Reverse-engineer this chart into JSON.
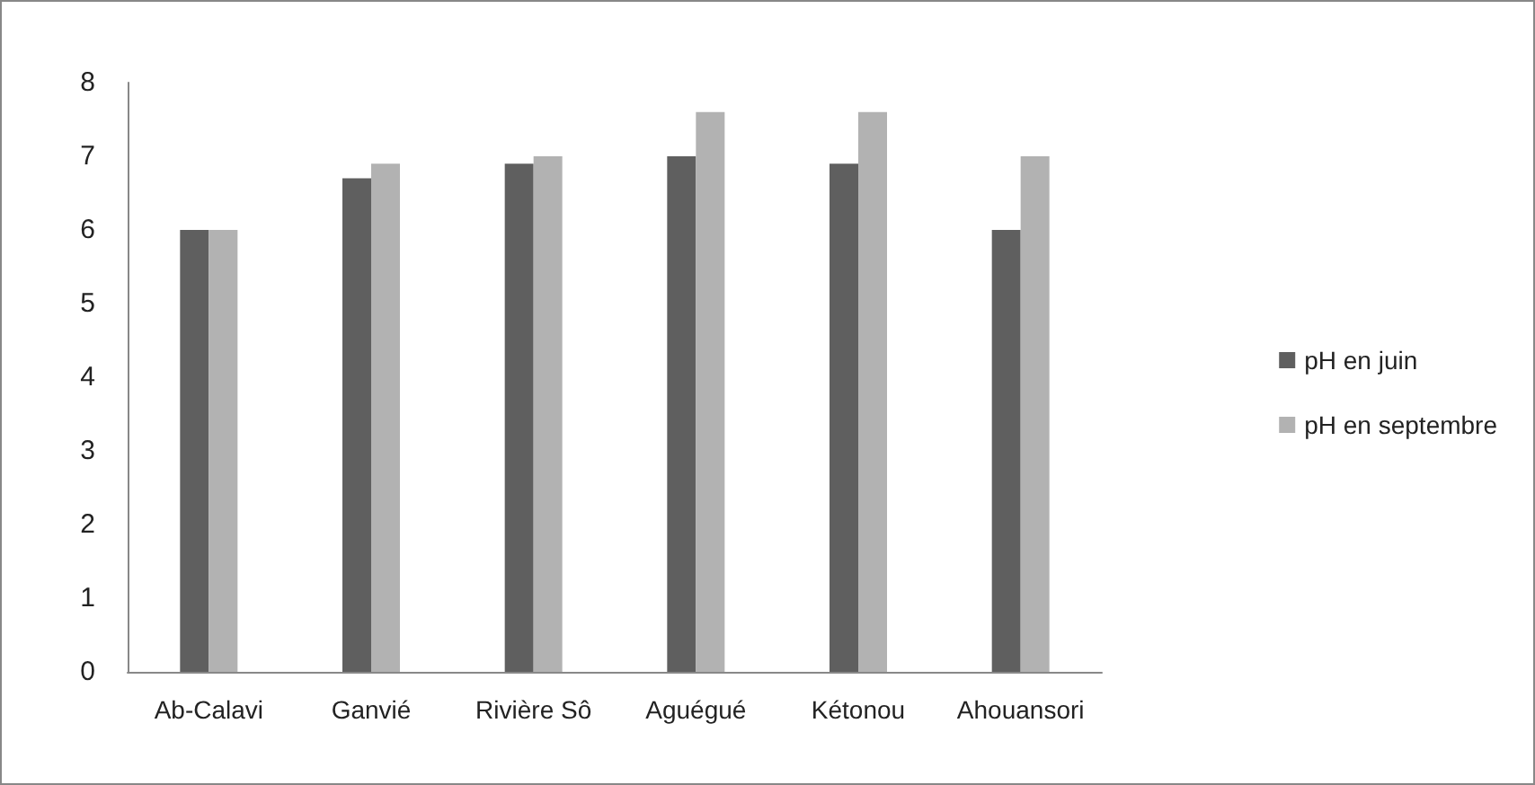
{
  "chart_data": {
    "type": "bar",
    "categories": [
      "Ab-Calavi",
      "Ganvié",
      "Rivière Sô",
      "Aguégué",
      "Kétonou",
      "Ahouansori"
    ],
    "series": [
      {
        "name": "pH en juin",
        "color": "#5f5f5f",
        "values": [
          6.0,
          6.7,
          6.9,
          7.0,
          6.9,
          6.0
        ]
      },
      {
        "name": "pH en septembre",
        "color": "#b2b2b2",
        "values": [
          6.0,
          6.9,
          7.0,
          7.6,
          7.6,
          7.0
        ]
      }
    ],
    "ylim": [
      0,
      8
    ],
    "yticks": [
      0,
      1,
      2,
      3,
      4,
      5,
      6,
      7,
      8
    ],
    "grid": false,
    "legend": "right"
  }
}
